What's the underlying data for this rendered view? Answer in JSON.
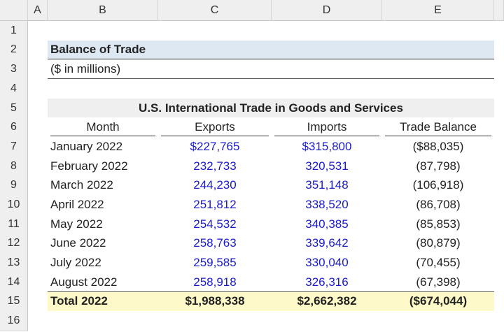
{
  "columns": [
    "A",
    "B",
    "C",
    "D",
    "E"
  ],
  "row_numbers": [
    1,
    2,
    3,
    4,
    5,
    6,
    7,
    8,
    9,
    10,
    11,
    12,
    13,
    14,
    15,
    16
  ],
  "title": "Balance of Trade",
  "subtitle": "($ in millions)",
  "table": {
    "title": "U.S. International Trade in Goods and Services",
    "headers": [
      "Month",
      "Exports",
      "Imports",
      "Trade Balance"
    ],
    "rows": [
      [
        "January 2022",
        "$227,765",
        "$315,800",
        "($88,035)"
      ],
      [
        "February 2022",
        "232,733",
        "320,531",
        "(87,798)"
      ],
      [
        "March 2022",
        "244,230",
        "351,148",
        "(106,918)"
      ],
      [
        "April 2022",
        "251,812",
        "338,520",
        "(86,708)"
      ],
      [
        "May 2022",
        "254,532",
        "340,385",
        "(85,853)"
      ],
      [
        "June 2022",
        "258,763",
        "339,642",
        "(80,879)"
      ],
      [
        "July 2022",
        "259,585",
        "330,040",
        "(70,455)"
      ],
      [
        "August 2022",
        "258,918",
        "326,316",
        "(67,398)"
      ]
    ],
    "total": [
      "Total 2022",
      "$1,988,338",
      "$2,662,382",
      "($674,044)"
    ]
  }
}
